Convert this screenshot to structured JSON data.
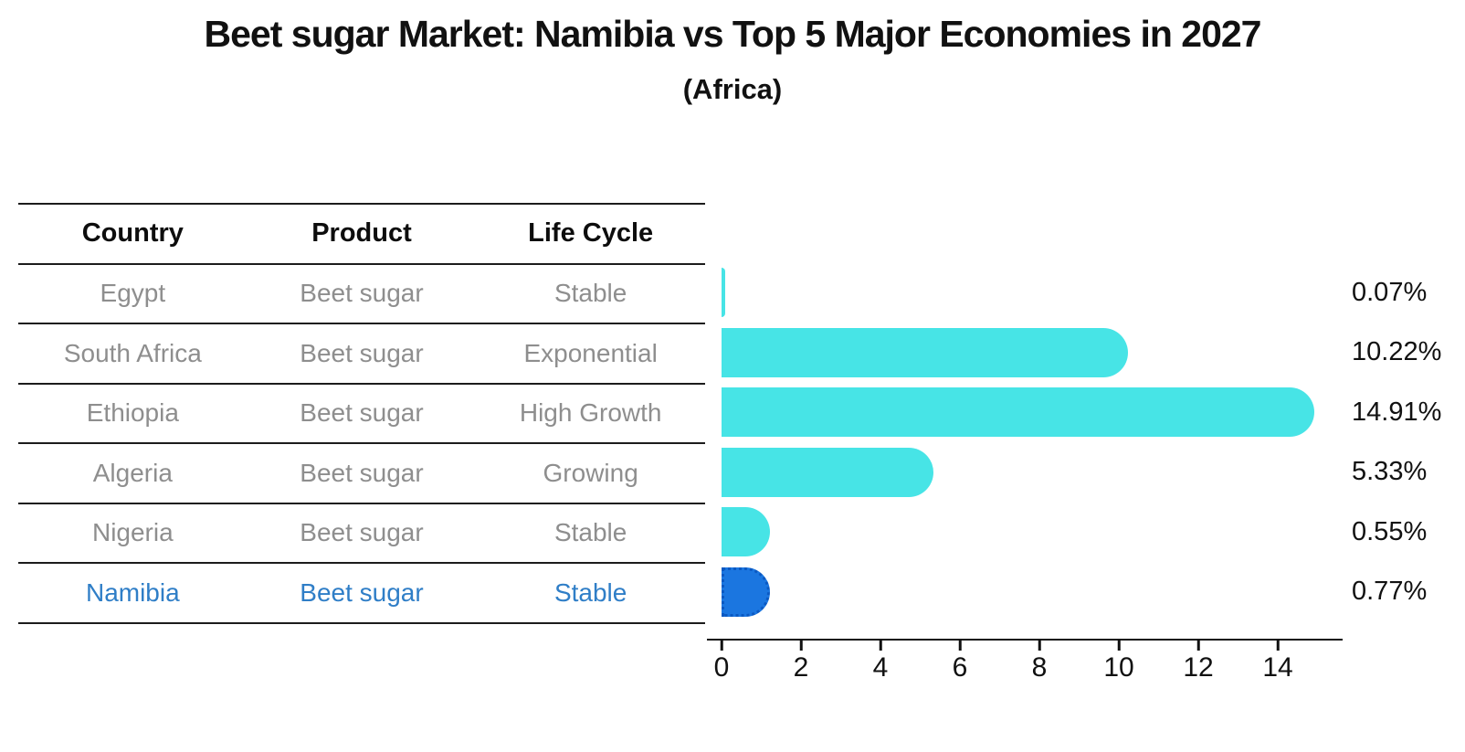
{
  "chart_data": {
    "type": "bar",
    "orientation": "horizontal",
    "title": "Beet sugar Market: Namibia vs Top 5 Major Economies in 2027",
    "subtitle": "(Africa)",
    "categories": [
      "Egypt",
      "South Africa",
      "Ethiopia",
      "Algeria",
      "Nigeria",
      "Namibia"
    ],
    "values": [
      0.07,
      10.22,
      14.91,
      5.33,
      0.55,
      0.77
    ],
    "value_labels": [
      "0.07%",
      "10.22%",
      "14.91%",
      "5.33%",
      "0.55%",
      "0.77%"
    ],
    "unit": "%",
    "xticks": [
      "0",
      "2",
      "4",
      "6",
      "8",
      "10",
      "12",
      "14"
    ],
    "xlim": [
      0,
      15.7
    ],
    "grid": false,
    "legend": false,
    "highlight_index": 5,
    "bar_color": "#47e4e6",
    "highlight_bar_color": "#1b76e0",
    "highlight_edge_color": "#0b59c2"
  },
  "table": {
    "headers": [
      "Country",
      "Product",
      "Life Cycle"
    ],
    "rows": [
      {
        "country": "Egypt",
        "product": "Beet sugar",
        "life_cycle": "Stable"
      },
      {
        "country": "South Africa",
        "product": "Beet sugar",
        "life_cycle": "Exponential"
      },
      {
        "country": "Ethiopia",
        "product": "Beet sugar",
        "life_cycle": "High Growth"
      },
      {
        "country": "Algeria",
        "product": "Beet sugar",
        "life_cycle": "Growing"
      },
      {
        "country": "Nigeria",
        "product": "Beet sugar",
        "life_cycle": "Stable"
      },
      {
        "country": "Namibia",
        "product": "Beet sugar",
        "life_cycle": "Stable"
      }
    ],
    "highlight_row": "Namibia",
    "row_text_color": "#8e8e8e",
    "highlight_text_color": "#2f7ec7"
  }
}
